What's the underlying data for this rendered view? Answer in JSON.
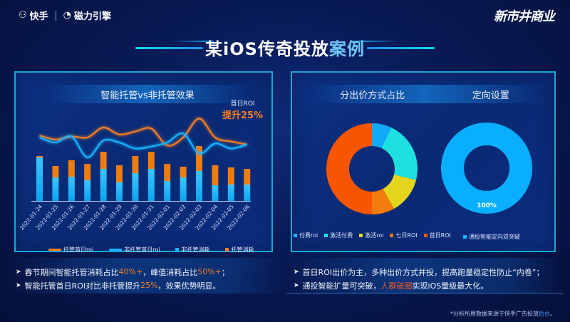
{
  "header": {
    "brand_left_1": "快手",
    "brand_left_2": "磁力引擎",
    "brand_right": "新市井商业"
  },
  "title": {
    "main": "某iOS传奇投放",
    "highlight": "案例"
  },
  "left_panel": {
    "heading": "智能托管vs非托管效果",
    "roi_note_small": "首日ROI",
    "roi_note_big": "提升25%",
    "legend": [
      "托管首日roi",
      "非托管首日roi",
      "非托管消耗",
      "托管消耗"
    ]
  },
  "right_panel": {
    "heading_1": "分出价方式占比",
    "heading_2": "定向设置",
    "legend_1": [
      "付费roi",
      "激活付费",
      "激活roi",
      "七日ROI",
      "首日ROI"
    ],
    "legend_2": [
      "通投智能定向双突破"
    ],
    "donut2_label": "100%"
  },
  "bullets_left": [
    {
      "pre": "春节期间智能托管消耗占比",
      "h1": "40%+",
      "mid": "，峰值消耗占比",
      "h2": "50%+",
      "post": "；"
    },
    {
      "pre": "智能托管首日ROI对比非托管提升",
      "h1": "25%",
      "mid": "，效果优势明显。",
      "h2": "",
      "post": ""
    }
  ],
  "bullets_right": [
    {
      "pre": "首日ROI出价为主，多种出价方式并投，提高跑量稳定性防止“内卷”；",
      "h1": "",
      "post": ""
    },
    {
      "pre": "通投智能扩量可突破，",
      "h1": "人群破圈",
      "post": "实现iOS量级最大化。"
    }
  ],
  "footnote": {
    "pre": "*分析所用数据来源于快手广告投放",
    "hl": "后台",
    "post": "。"
  },
  "colors": {
    "orange": "#f47b20",
    "blue": "#18b4ff",
    "cyan": "#1fe0e0",
    "yellow": "#e3d41c",
    "amber": "#f07c0c",
    "red_orange": "#f85500",
    "border": "#19a6d4"
  },
  "chart_data": [
    {
      "type": "bar+line",
      "title": "智能托管vs非托管效果",
      "categories": [
        "2022-01-24",
        "2022-01-25",
        "2022-01-26",
        "2022-01-27",
        "2022-01-28",
        "2022-01-29",
        "2022-01-30",
        "2022-01-31",
        "2022-02-01",
        "2022-02-02",
        "2022-02-03",
        "2022-02-04",
        "2022-02-05",
        "2022-02-06"
      ],
      "series": [
        {
          "name": "非托管消耗",
          "kind": "stacked-bar",
          "values": [
            61,
            33,
            34,
            29,
            45,
            26,
            39,
            45,
            28,
            33,
            42,
            22,
            23,
            23
          ]
        },
        {
          "name": "托管消耗",
          "kind": "stacked-bar",
          "values": [
            2,
            16,
            23,
            23,
            24,
            24,
            24,
            24,
            24,
            15,
            35,
            28,
            24,
            22
          ]
        },
        {
          "name": "托管首日roi",
          "kind": "line",
          "values": [
            62,
            58,
            61,
            60,
            70,
            63,
            66,
            69,
            52,
            60,
            79,
            60,
            56,
            53
          ]
        },
        {
          "name": "非托管首日roi",
          "kind": "line",
          "values": [
            60,
            55,
            61,
            40,
            57,
            55,
            49,
            51,
            55,
            64,
            44,
            54,
            49,
            53
          ]
        }
      ],
      "annotation": "首日ROI 提升25%",
      "xlabel": "",
      "ylabel": ""
    },
    {
      "type": "pie",
      "title": "分出价方式占比",
      "labels": [
        "付费roi",
        "激活付费",
        "激活roi",
        "七日ROI",
        "首日ROI"
      ],
      "values": [
        7,
        22,
        13,
        8,
        50
      ],
      "donut": true
    },
    {
      "type": "pie",
      "title": "定向设置",
      "labels": [
        "通投智能定向双突破"
      ],
      "values": [
        100
      ],
      "donut": true,
      "data_labels": [
        "100%"
      ]
    }
  ]
}
